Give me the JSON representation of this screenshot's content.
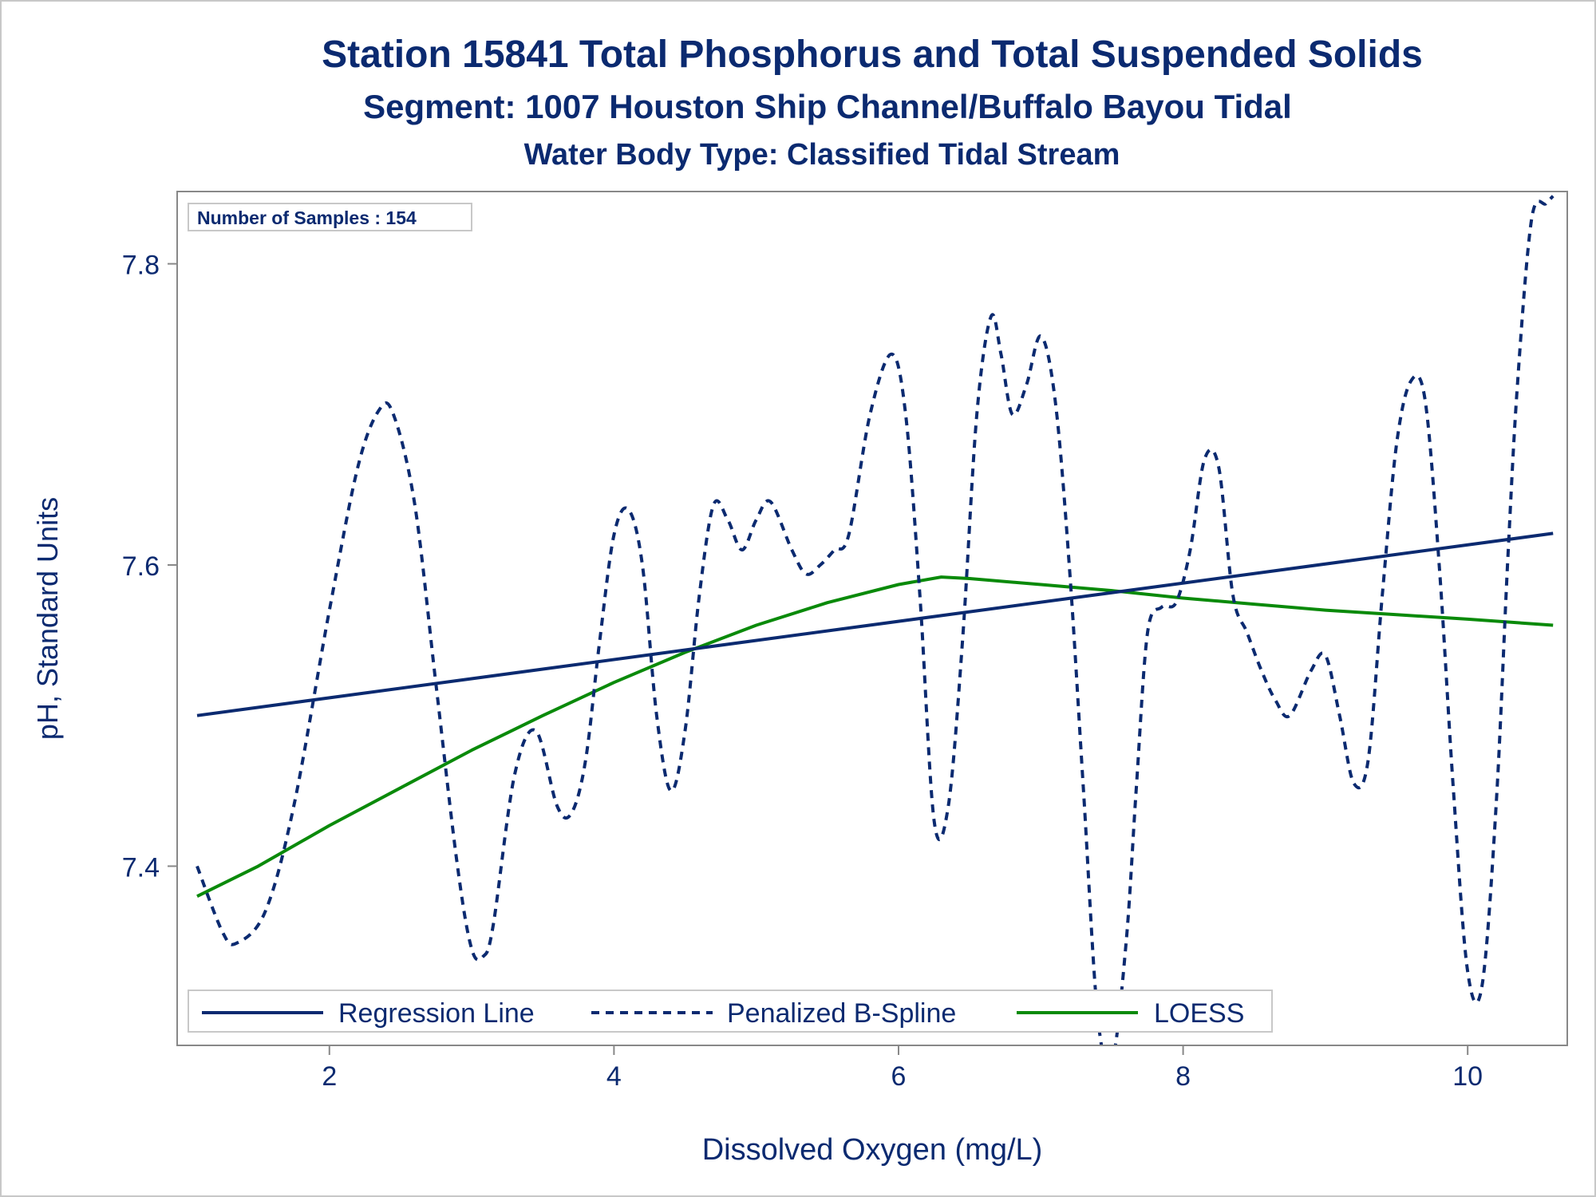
{
  "titles": {
    "line1": "Station 15841  Total Phosphorus and Total Suspended Solids",
    "line2": "Segment: 1007  Houston Ship Channel/Buffalo Bayou Tidal",
    "line3": "Water Body Type: Classified Tidal Stream"
  },
  "inset_label": "Number of Samples : 154",
  "colors": {
    "title": "#0b2a70",
    "regression": "#0b2a70",
    "spline": "#0b2a70",
    "loess": "#0a8a0a",
    "frame": "#c8c8c8",
    "axis": "#888888"
  },
  "chart_data": {
    "type": "line",
    "xlabel": "Dissolved Oxygen (mg/L)",
    "ylabel": "pH, Standard Units",
    "xlim": [
      0.93,
      10.7
    ],
    "ylim": [
      7.281,
      7.848
    ],
    "xticks": [
      2,
      4,
      6,
      8,
      10
    ],
    "yticks": [
      7.4,
      7.6,
      7.8
    ],
    "xtick_labels": [
      "2",
      "4",
      "6",
      "8",
      "10"
    ],
    "ytick_labels": [
      "7.4",
      "7.6",
      "7.8"
    ],
    "grid": false,
    "legend_position": "bottom-left inside",
    "series": [
      {
        "name": "Regression Line",
        "style": "solid",
        "x": [
          1.07,
          10.6
        ],
        "y": [
          7.5,
          7.621
        ]
      },
      {
        "name": "Penalized B-Spline",
        "style": "dashed",
        "x": [
          1.07,
          1.25,
          1.35,
          1.55,
          1.75,
          2.0,
          2.2,
          2.35,
          2.45,
          2.6,
          2.75,
          2.9,
          3.0,
          3.08,
          3.15,
          3.3,
          3.45,
          3.6,
          3.7,
          3.8,
          3.9,
          4.0,
          4.1,
          4.2,
          4.3,
          4.4,
          4.5,
          4.6,
          4.7,
          4.8,
          4.9,
          5.0,
          5.1,
          5.25,
          5.35,
          5.45,
          5.55,
          5.65,
          5.8,
          5.95,
          6.05,
          6.15,
          6.25,
          6.35,
          6.45,
          6.55,
          6.65,
          6.72,
          6.8,
          6.9,
          7.0,
          7.1,
          7.2,
          7.3,
          7.4,
          7.5,
          7.6,
          7.67,
          7.75,
          7.85,
          7.95,
          8.05,
          8.15,
          8.25,
          8.35,
          8.45,
          8.55,
          8.65,
          8.75,
          8.9,
          9.0,
          9.1,
          9.2,
          9.3,
          9.4,
          9.5,
          9.6,
          9.7,
          9.8,
          9.9,
          10.0,
          10.1,
          10.2,
          10.28,
          10.35,
          10.45,
          10.55,
          10.6
        ],
        "y": [
          7.4,
          7.356,
          7.349,
          7.37,
          7.44,
          7.57,
          7.665,
          7.703,
          7.7,
          7.64,
          7.52,
          7.4,
          7.345,
          7.34,
          7.36,
          7.46,
          7.49,
          7.44,
          7.435,
          7.47,
          7.55,
          7.62,
          7.637,
          7.6,
          7.5,
          7.45,
          7.49,
          7.58,
          7.64,
          7.63,
          7.61,
          7.63,
          7.642,
          7.61,
          7.594,
          7.6,
          7.61,
          7.62,
          7.7,
          7.74,
          7.7,
          7.58,
          7.43,
          7.44,
          7.55,
          7.7,
          7.765,
          7.74,
          7.7,
          7.72,
          7.752,
          7.71,
          7.6,
          7.45,
          7.3,
          7.27,
          7.35,
          7.45,
          7.555,
          7.572,
          7.575,
          7.61,
          7.67,
          7.665,
          7.58,
          7.555,
          7.53,
          7.51,
          7.5,
          7.53,
          7.54,
          7.5,
          7.455,
          7.47,
          7.58,
          7.68,
          7.722,
          7.71,
          7.6,
          7.45,
          7.33,
          7.32,
          7.44,
          7.6,
          7.72,
          7.83,
          7.84,
          7.845
        ]
      },
      {
        "name": "LOESS",
        "style": "solid",
        "x": [
          1.07,
          1.5,
          2.0,
          2.5,
          3.0,
          3.5,
          4.0,
          4.5,
          5.0,
          5.5,
          6.0,
          6.3,
          6.5,
          7.0,
          7.5,
          8.0,
          8.5,
          9.0,
          9.5,
          10.0,
          10.6
        ],
        "y": [
          7.38,
          7.4,
          7.427,
          7.452,
          7.477,
          7.5,
          7.522,
          7.542,
          7.56,
          7.575,
          7.587,
          7.592,
          7.591,
          7.587,
          7.583,
          7.578,
          7.574,
          7.57,
          7.567,
          7.564,
          7.56
        ]
      }
    ]
  }
}
